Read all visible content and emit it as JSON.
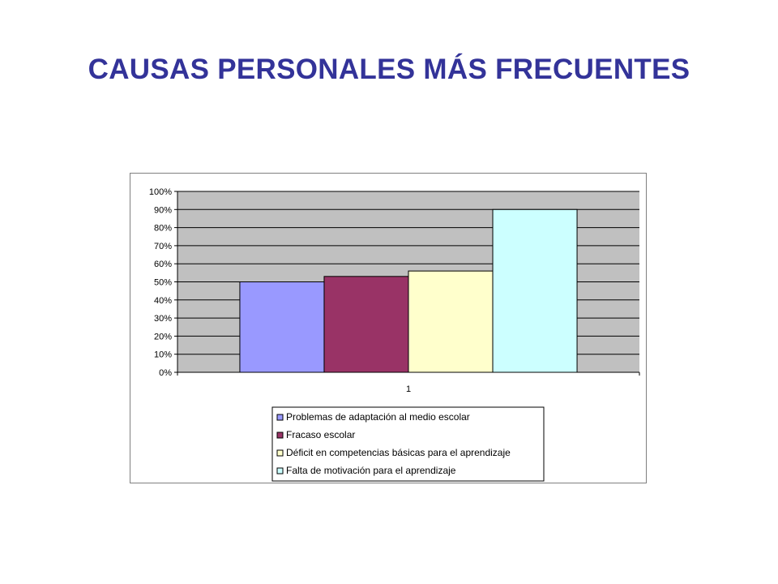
{
  "title": "CAUSAS PERSONALES MÁS FRECUENTES",
  "chart_data": {
    "type": "bar",
    "categories": [
      "1"
    ],
    "series": [
      {
        "name": "Problemas de adaptación al medio escolar",
        "values": [
          0.5
        ],
        "color": "#9999ff"
      },
      {
        "name": "Fracaso escolar",
        "values": [
          0.53
        ],
        "color": "#993366"
      },
      {
        "name": "Déficit en competencias básicas para el aprendizaje",
        "values": [
          0.56
        ],
        "color": "#ffffcc"
      },
      {
        "name": "Falta de motivación para el aprendizaje",
        "values": [
          0.9
        ],
        "color": "#ccffff"
      }
    ],
    "y_ticks": [
      "0%",
      "10%",
      "20%",
      "30%",
      "40%",
      "50%",
      "60%",
      "70%",
      "80%",
      "90%",
      "100%"
    ],
    "ylim": [
      0,
      1
    ],
    "grid": true,
    "plot_background": "#c0c0c0",
    "legend_position": "bottom"
  }
}
